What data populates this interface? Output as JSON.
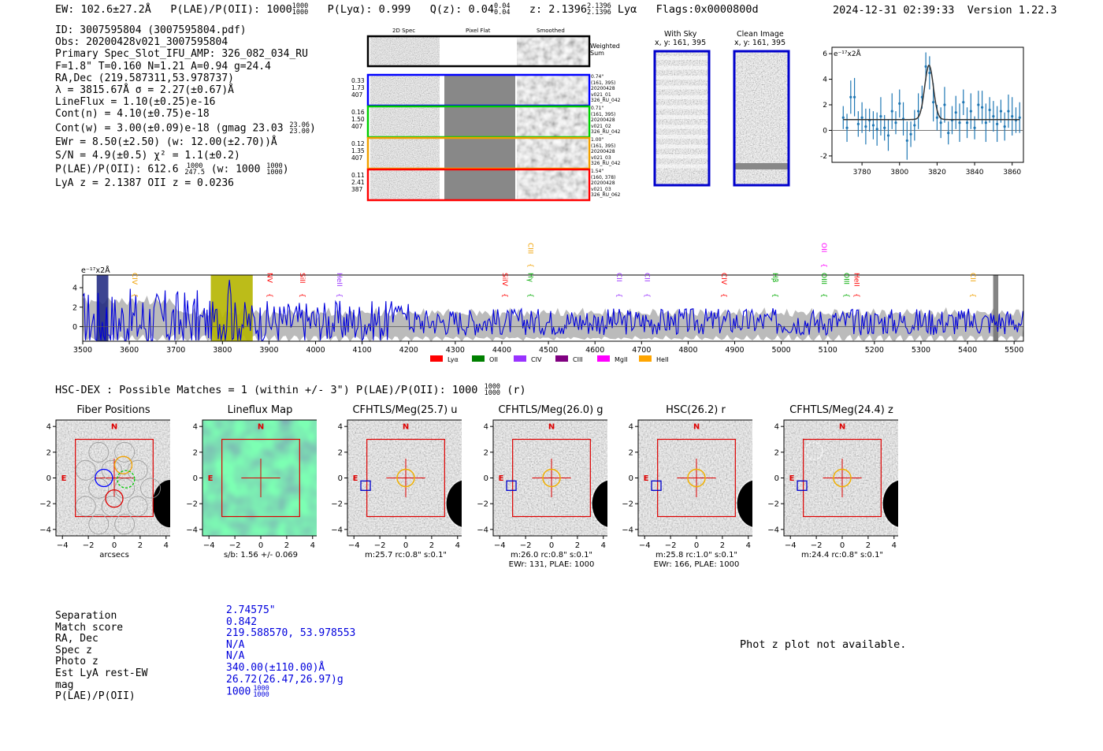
{
  "header": {
    "ew": "EW: 102.6±27.2Å",
    "plae_label": "P(LAE)/P(OII): 1000",
    "plae_hi": "1000",
    "plae_lo": "1000",
    "plya": "P(Lyα): 0.999",
    "qz_label": "Q(z): 0.04",
    "qz_hi": "0.04",
    "qz_lo": "0.04",
    "z_label": "z: 2.1396",
    "z_hi": "2.1396",
    "z_lo": "2.1396",
    "z_line": "Lyα",
    "flags": "Flags:0x0000800d",
    "timestamp": "2024-12-31 02:39:33",
    "version": "Version 1.22.3"
  },
  "info": {
    "id": "ID: 3007595804 (3007595804.pdf)",
    "obs": "Obs: 20200428v021_3007595804",
    "primary": "Primary Spec_Slot_IFU_AMP: 326_082_034_RU",
    "fwhm": "F=1.8\"  T=0.160  N=1.21  A=0.94  g=24.4",
    "radec": "RA,Dec (219.587311,53.978737)",
    "lambda": "λ = 3815.67Å  σ = 2.27(±0.67)Å",
    "lineflux": "LineFlux = 1.10(±0.25)e-16",
    "contn": "Cont(n) = 4.10(±0.75)e-18",
    "contw": "Cont(w) = 3.00(±0.09)e-18 (gmag 23.03",
    "contw_hi": "23.06",
    "contw_lo": "23.00",
    "contw_end": ")",
    "ewr": "EWr = 8.50(±2.50) (w: 12.00(±2.70))Å",
    "sn": "S/N = 4.9(±0.5)  χ² = 1.1(±0.2)",
    "plae": "P(LAE)/P(OII): 612.6",
    "plae_hi": "1000",
    "plae_lo": "247.5",
    "plae_w": "(w: 1000",
    "plae_w_hi": "1000",
    "plae_w_lo": "1000",
    "plae_end": ")",
    "lya_z": "LyA z = 2.1387  OII z = 0.0236"
  },
  "cutouts": {
    "col1": "2D Spec",
    "col2": "Pixel Flat",
    "col3": "Smoothed",
    "weighted": "Weighted\nSum",
    "rows": [
      {
        "left": [
          "0.33",
          "1.73",
          "407"
        ],
        "right": [
          "0.74\"",
          "(161, 395)",
          "20200428",
          "v021_01",
          "326_RU_042"
        ],
        "color": "#0000ff"
      },
      {
        "left": [
          "0.16",
          "1.50",
          "407"
        ],
        "right": [
          "0.71\"",
          "(161, 395)",
          "20200428",
          "v021_02",
          "326_RU_042"
        ],
        "color": "#00cc00"
      },
      {
        "left": [
          "0.12",
          "1.35",
          "407"
        ],
        "right": [
          "1.00\"",
          "(161, 395)",
          "20200428",
          "v021_03",
          "326_RU_042"
        ],
        "color": "#f0a000"
      },
      {
        "left": [
          "0.11",
          "2.41",
          "387"
        ],
        "right": [
          "1.54\"",
          "(160, 378)",
          "20200428",
          "v021_03",
          "326_RU_062"
        ],
        "color": "#ff0000"
      }
    ],
    "sky_title": "With Sky",
    "sky_xy": "x, y: 161, 395",
    "clean_title": "Clean Image",
    "clean_xy": "x, y: 161, 395"
  },
  "chart_data": [
    {
      "type": "line",
      "title": "",
      "ylabel": "e⁻¹⁷x2Å",
      "x_ticks": [
        3780,
        3800,
        3820,
        3840,
        3860
      ],
      "y_ticks": [
        -2,
        0,
        2,
        4,
        6
      ],
      "xlim": [
        3764,
        3866
      ],
      "ylim": [
        -2.5,
        6.5
      ],
      "points": [
        [
          3770,
          1.0
        ],
        [
          3772,
          0.2
        ],
        [
          3774,
          2.6
        ],
        [
          3776,
          2.6
        ],
        [
          3778,
          0.5
        ],
        [
          3780,
          1.0
        ],
        [
          3782,
          0.3
        ],
        [
          3784,
          0.8
        ],
        [
          3786,
          0.4
        ],
        [
          3788,
          0.1
        ],
        [
          3790,
          1.1
        ],
        [
          3792,
          0.2
        ],
        [
          3794,
          -0.4
        ],
        [
          3796,
          1.5
        ],
        [
          3798,
          0.6
        ],
        [
          3800,
          2.1
        ],
        [
          3802,
          0.9
        ],
        [
          3804,
          -0.8
        ],
        [
          3806,
          -0.3
        ],
        [
          3808,
          0.4
        ],
        [
          3810,
          1.5
        ],
        [
          3812,
          2.6
        ],
        [
          3814,
          5.0
        ],
        [
          3816,
          4.5
        ],
        [
          3818,
          2.2
        ],
        [
          3820,
          1.0
        ],
        [
          3822,
          0.6
        ],
        [
          3824,
          2.0
        ],
        [
          3826,
          -0.2
        ],
        [
          3828,
          0.8
        ],
        [
          3830,
          1.4
        ],
        [
          3832,
          0.6
        ],
        [
          3834,
          2.2
        ],
        [
          3836,
          0.6
        ],
        [
          3838,
          1.5
        ],
        [
          3840,
          0.2
        ],
        [
          3842,
          2.0
        ],
        [
          3844,
          1.8
        ],
        [
          3846,
          0.6
        ],
        [
          3848,
          1.6
        ],
        [
          3850,
          1.1
        ],
        [
          3852,
          0.5
        ],
        [
          3854,
          1.5
        ],
        [
          3856,
          0.3
        ],
        [
          3858,
          1.5
        ],
        [
          3860,
          1.1
        ],
        [
          3862,
          0.8
        ],
        [
          3864,
          1.0
        ]
      ],
      "fit": {
        "continuum": 0.85,
        "peak": 5.1,
        "center": 3815.7,
        "sigma": 2.3
      }
    },
    {
      "type": "line",
      "ylabel": "e⁻¹⁷x2Å",
      "x_ticks": [
        3500,
        3600,
        3700,
        3800,
        3900,
        4000,
        4100,
        4200,
        4300,
        4400,
        4500,
        4600,
        4700,
        4800,
        4900,
        5000,
        5100,
        5200,
        5300,
        5400,
        5500
      ],
      "y_ticks": [
        0,
        2,
        4
      ],
      "xlim": [
        3500,
        5520
      ],
      "ylim": [
        -1.5,
        5.3
      ],
      "highlight": [
        3775,
        3865
      ],
      "line_markers": [
        {
          "label": "CIV",
          "x": 3600,
          "color": "#f0a000"
        },
        {
          "label": "NV",
          "x": 3890,
          "color": "#ff0000"
        },
        {
          "label": "SiII",
          "x": 3960,
          "color": "#ff0000"
        },
        {
          "label": "HeII",
          "x": 4040,
          "color": "#9933ff"
        },
        {
          "label": "SiIV",
          "x": 4395,
          "color": "#ff0000"
        },
        {
          "label": "CIII",
          "x": 4450,
          "color": "#f0a000"
        },
        {
          "label": "Hγ",
          "x": 4450,
          "color": "#00aa00"
        },
        {
          "label": "CII",
          "x": 4640,
          "color": "#9933ff"
        },
        {
          "label": "CII",
          "x": 4700,
          "color": "#9933ff"
        },
        {
          "label": "CIV",
          "x": 4865,
          "color": "#ff0000"
        },
        {
          "label": "Hβ",
          "x": 4975,
          "color": "#00aa00"
        },
        {
          "label": "OIII",
          "x": 5080,
          "color": "#00aa00"
        },
        {
          "label": "OIII",
          "x": 5128,
          "color": "#00aa00"
        },
        {
          "label": "HeII",
          "x": 5150,
          "color": "#ff0000"
        },
        {
          "label": "OII",
          "x": 5080,
          "color": "#ff00ff"
        },
        {
          "label": "CII",
          "x": 5400,
          "color": "#f0a000"
        }
      ],
      "legend": [
        {
          "label": "Lyα",
          "color": "#ff0000"
        },
        {
          "label": "OII",
          "color": "#008000"
        },
        {
          "label": "CIV",
          "color": "#9933ff"
        },
        {
          "label": "CIII",
          "color": "#800080"
        },
        {
          "label": "MgII",
          "color": "#ff00ff"
        },
        {
          "label": "HeII",
          "color": "#ffa500"
        }
      ]
    }
  ],
  "hsc": {
    "title": "HSC-DEX : Possible Matches = 1 (within +/- 3\")  P(LAE)/P(OII): 1000",
    "plae_hi": "1000",
    "plae_lo": "1000",
    "suffix": "(r)"
  },
  "panels": [
    {
      "title": "Fiber Positions",
      "xlabel": "arcsecs",
      "sub1": "",
      "sub2": ""
    },
    {
      "title": "Lineflux Map",
      "xlabel": "s/b: 1.56 +/- 0.069",
      "sub1": "",
      "sub2": ""
    },
    {
      "title": "CFHTLS/Meg(25.7) u",
      "xlabel": "m:25.7 rc:0.8\"  s:0.1\"",
      "sub1": "",
      "sub2": ""
    },
    {
      "title": "CFHTLS/Meg(26.0) g",
      "xlabel": "m:26.0 rc:0.8\"  s:0.1\"",
      "sub1": "EWr: 131, PLAE: 1000",
      "sub2": ""
    },
    {
      "title": "HSC(26.2) r",
      "xlabel": "m:25.8 rc:1.0\"  s:0.1\"",
      "sub1": "EWr: 166, PLAE: 1000",
      "sub2": ""
    },
    {
      "title": "CFHTLS/Meg(24.4) z",
      "xlabel": "m:24.4 rc:0.8\"  s:0.1\"",
      "sub1": "",
      "sub2": ""
    }
  ],
  "panel_axes": {
    "ticks": [
      "−4",
      "−2",
      "0",
      "2",
      "4"
    ],
    "n_label": "N",
    "e_label": "E"
  },
  "match": {
    "labels": [
      "Separation",
      "Match score",
      "RA, Dec",
      "Spec z",
      "Photo z",
      "Est LyA rest-EW",
      "mag",
      "P(LAE)/P(OII)"
    ],
    "values": [
      "2.74575\"",
      "0.842",
      "219.588570, 53.978553",
      "N/A",
      "N/A",
      "340.00(±110.00)Å",
      "26.72(26.47,26.97)g",
      "1000"
    ],
    "plae_hi": "1000",
    "plae_lo": "1000"
  },
  "photz": "Phot z plot not available."
}
